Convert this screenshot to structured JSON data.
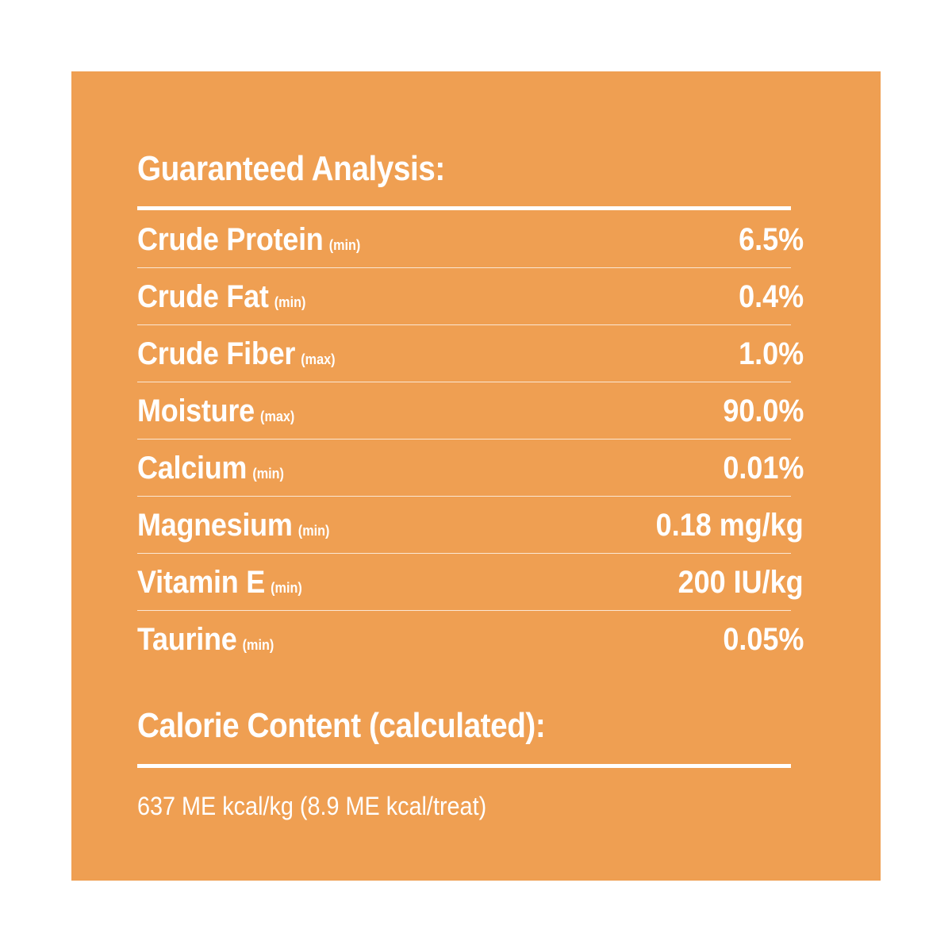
{
  "colors": {
    "panel_background": "#ef9f52",
    "text": "#ffffff",
    "page_background": "#ffffff"
  },
  "guaranteed_analysis": {
    "title": "Guaranteed Analysis:",
    "nutrients": [
      {
        "name": "Crude Protein",
        "qualifier": "(min)",
        "value": "6.5%"
      },
      {
        "name": "Crude Fat",
        "qualifier": "(min)",
        "value": "0.4%"
      },
      {
        "name": "Crude Fiber",
        "qualifier": "(max)",
        "value": "1.0%"
      },
      {
        "name": "Moisture",
        "qualifier": "(max)",
        "value": "90.0%"
      },
      {
        "name": "Calcium",
        "qualifier": "(min)",
        "value": "0.01%"
      },
      {
        "name": "Magnesium",
        "qualifier": "(min)",
        "value": "0.18 mg/kg"
      },
      {
        "name": "Vitamin E",
        "qualifier": "(min)",
        "value": "200 IU/kg"
      },
      {
        "name": "Taurine",
        "qualifier": "(min)",
        "value": "0.05%"
      }
    ]
  },
  "calorie_content": {
    "title": "Calorie Content (calculated):",
    "text": "637 ME kcal/kg (8.9 ME kcal/treat)"
  }
}
